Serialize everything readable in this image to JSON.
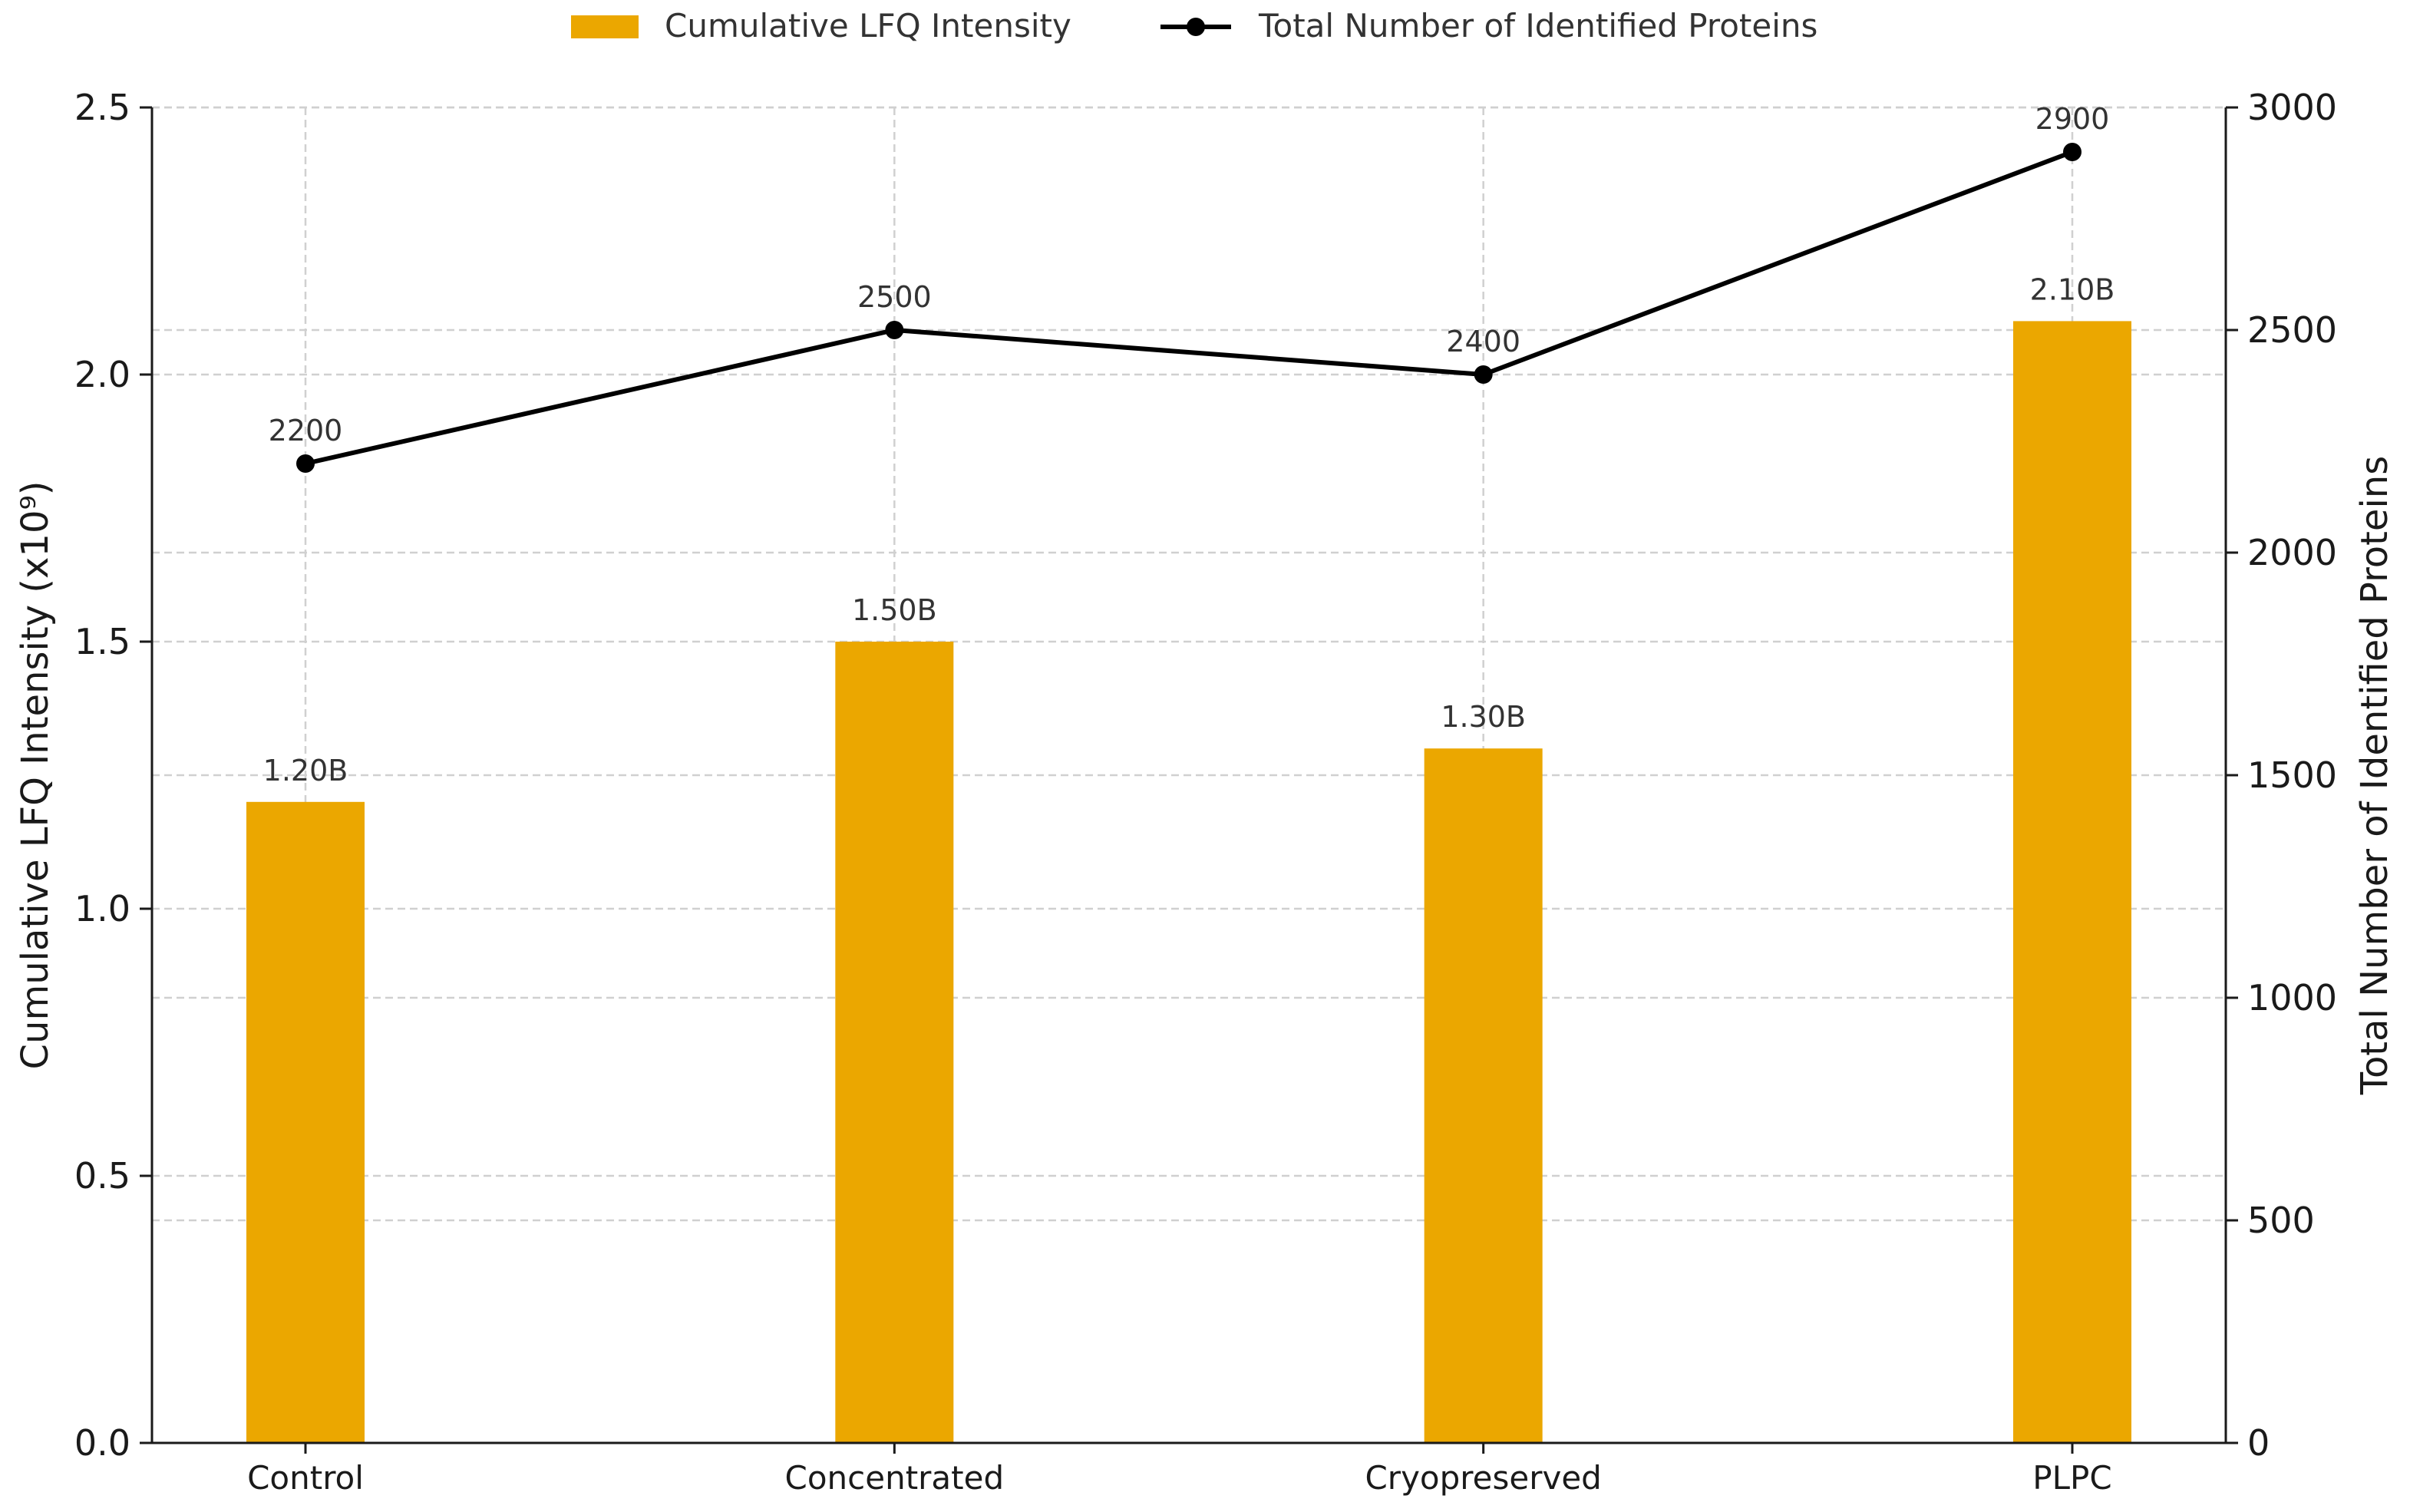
{
  "chart_data": {
    "type": "bar",
    "categories": [
      "Control",
      "Concentrated",
      "Cryopreserved",
      "PLPC"
    ],
    "series": [
      {
        "name": "Cumulative LFQ Intensity",
        "type": "bar",
        "axis": "left",
        "values": [
          1.2,
          1.5,
          1.3,
          2.1
        ],
        "labels": [
          "1.20B",
          "1.50B",
          "1.30B",
          "2.10B"
        ],
        "color": "#EBA700"
      },
      {
        "name": "Total Number of Identified Proteins",
        "type": "line",
        "axis": "right",
        "values": [
          2200,
          2500,
          2400,
          2900
        ],
        "labels": [
          "2200",
          "2500",
          "2400",
          "2900"
        ],
        "color": "#000000"
      }
    ],
    "ylabel": "Cumulative LFQ Intensity (x10⁹)",
    "ylabel_right": "Total Number of Identified Proteins",
    "ylim": [
      0,
      2.5
    ],
    "ylim_right": [
      0,
      3000
    ],
    "yticks": [
      "0.0",
      "0.5",
      "1.0",
      "1.5",
      "2.0",
      "2.5"
    ],
    "yticks_right": [
      "0",
      "500",
      "1000",
      "1500",
      "2000",
      "2500",
      "3000"
    ],
    "grid": true,
    "legend_position": "top-center"
  }
}
